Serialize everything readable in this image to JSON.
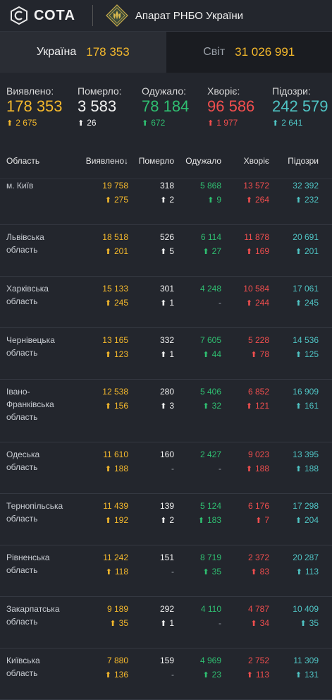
{
  "header": {
    "logo_text": "СОТА",
    "org_name": "Апарат РНБО України"
  },
  "tabs": [
    {
      "label": "Україна",
      "value": "178 353"
    },
    {
      "label": "Світ",
      "value": "31 026 991"
    }
  ],
  "summary": [
    {
      "label": "Виявлено:",
      "value": "178 353",
      "delta": "2 675",
      "color": "yellow"
    },
    {
      "label": "Померло:",
      "value": "3 583",
      "delta": "26",
      "color": "white"
    },
    {
      "label": "Одужало:",
      "value": "78 184",
      "delta": "672",
      "color": "green"
    },
    {
      "label": "Хворіє:",
      "value": "96 586",
      "delta": "1 977",
      "color": "red"
    },
    {
      "label": "Підозри:",
      "value": "242 579",
      "delta": "2 641",
      "color": "teal"
    }
  ],
  "table": {
    "headers": {
      "region": "Область",
      "confirmed": "Виявлено",
      "sort_indicator": "↓",
      "deaths": "Померло",
      "recovered": "Одужало",
      "sick": "Хворіє",
      "suspected": "Підозри"
    },
    "rows": [
      {
        "name": "м. Київ",
        "confirmed": "19 758",
        "confirmed_d": "275",
        "deaths": "318",
        "deaths_d": "2",
        "recovered": "5 868",
        "recovered_d": "9",
        "sick": "13 572",
        "sick_d": "264",
        "suspected": "32 392",
        "suspected_d": "232"
      },
      {
        "name": "Львівська область",
        "confirmed": "18 518",
        "confirmed_d": "201",
        "deaths": "526",
        "deaths_d": "5",
        "recovered": "6 114",
        "recovered_d": "27",
        "sick": "11 878",
        "sick_d": "169",
        "suspected": "20 691",
        "suspected_d": "201"
      },
      {
        "name": "Харківська область",
        "confirmed": "15 133",
        "confirmed_d": "245",
        "deaths": "301",
        "deaths_d": "1",
        "recovered": "4 248",
        "recovered_d": "-",
        "sick": "10 584",
        "sick_d": "244",
        "suspected": "17 061",
        "suspected_d": "245"
      },
      {
        "name": "Чернівецька область",
        "confirmed": "13 165",
        "confirmed_d": "123",
        "deaths": "332",
        "deaths_d": "1",
        "recovered": "7 605",
        "recovered_d": "44",
        "sick": "5 228",
        "sick_d": "78",
        "suspected": "14 536",
        "suspected_d": "125"
      },
      {
        "name": "Івано-Франківська область",
        "confirmed": "12 538",
        "confirmed_d": "156",
        "deaths": "280",
        "deaths_d": "3",
        "recovered": "5 406",
        "recovered_d": "32",
        "sick": "6 852",
        "sick_d": "121",
        "suspected": "16 909",
        "suspected_d": "161"
      },
      {
        "name": "Одеська область",
        "confirmed": "11 610",
        "confirmed_d": "188",
        "deaths": "160",
        "deaths_d": "-",
        "recovered": "2 427",
        "recovered_d": "-",
        "sick": "9 023",
        "sick_d": "188",
        "suspected": "13 395",
        "suspected_d": "188"
      },
      {
        "name": "Тернопільська область",
        "confirmed": "11 439",
        "confirmed_d": "192",
        "deaths": "139",
        "deaths_d": "2",
        "recovered": "5 124",
        "recovered_d": "183",
        "sick": "6 176",
        "sick_d": "7",
        "suspected": "17 298",
        "suspected_d": "204"
      },
      {
        "name": "Рівненська область",
        "confirmed": "11 242",
        "confirmed_d": "118",
        "deaths": "151",
        "deaths_d": "-",
        "recovered": "8 719",
        "recovered_d": "35",
        "sick": "2 372",
        "sick_d": "83",
        "suspected": "20 287",
        "suspected_d": "113"
      },
      {
        "name": "Закарпатська область",
        "confirmed": "9 189",
        "confirmed_d": "35",
        "deaths": "292",
        "deaths_d": "1",
        "recovered": "4 110",
        "recovered_d": "-",
        "sick": "4 787",
        "sick_d": "34",
        "suspected": "10 409",
        "suspected_d": "35"
      },
      {
        "name": "Київська область",
        "confirmed": "7 880",
        "confirmed_d": "136",
        "deaths": "159",
        "deaths_d": "-",
        "recovered": "4 969",
        "recovered_d": "23",
        "sick": "2 752",
        "sick_d": "113",
        "suspected": "11 309",
        "suspected_d": "131"
      }
    ]
  }
}
